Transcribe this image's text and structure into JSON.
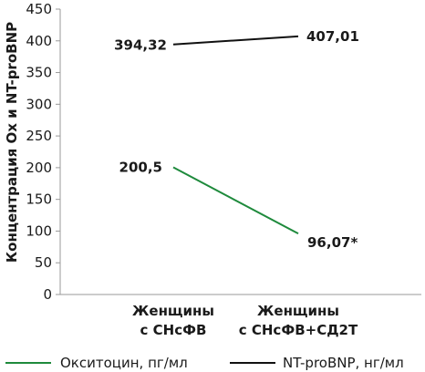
{
  "chart_data": {
    "type": "line",
    "categories": [
      [
        "Женщины",
        "с СНсФВ"
      ],
      [
        "Женщины",
        "с СНсФВ+СД2Т"
      ]
    ],
    "ylabel": "Концентрация Ox и NT-proBNP",
    "ylim": [
      0,
      450
    ],
    "yticks": [
      0,
      50,
      100,
      150,
      200,
      250,
      300,
      350,
      400,
      450
    ],
    "grid": false,
    "legend_position": "bottom",
    "series": [
      {
        "name": "Окситоцин, пг/мл",
        "values": [
          200.5,
          96.07
        ],
        "labels": [
          "200,5",
          "96,07*"
        ],
        "color": "#1e8a3c"
      },
      {
        "name": "NT-proBNP, нг/мл",
        "values": [
          394.32,
          407.01
        ],
        "labels": [
          "394,32",
          "407,01"
        ],
        "color": "#111111"
      }
    ]
  }
}
